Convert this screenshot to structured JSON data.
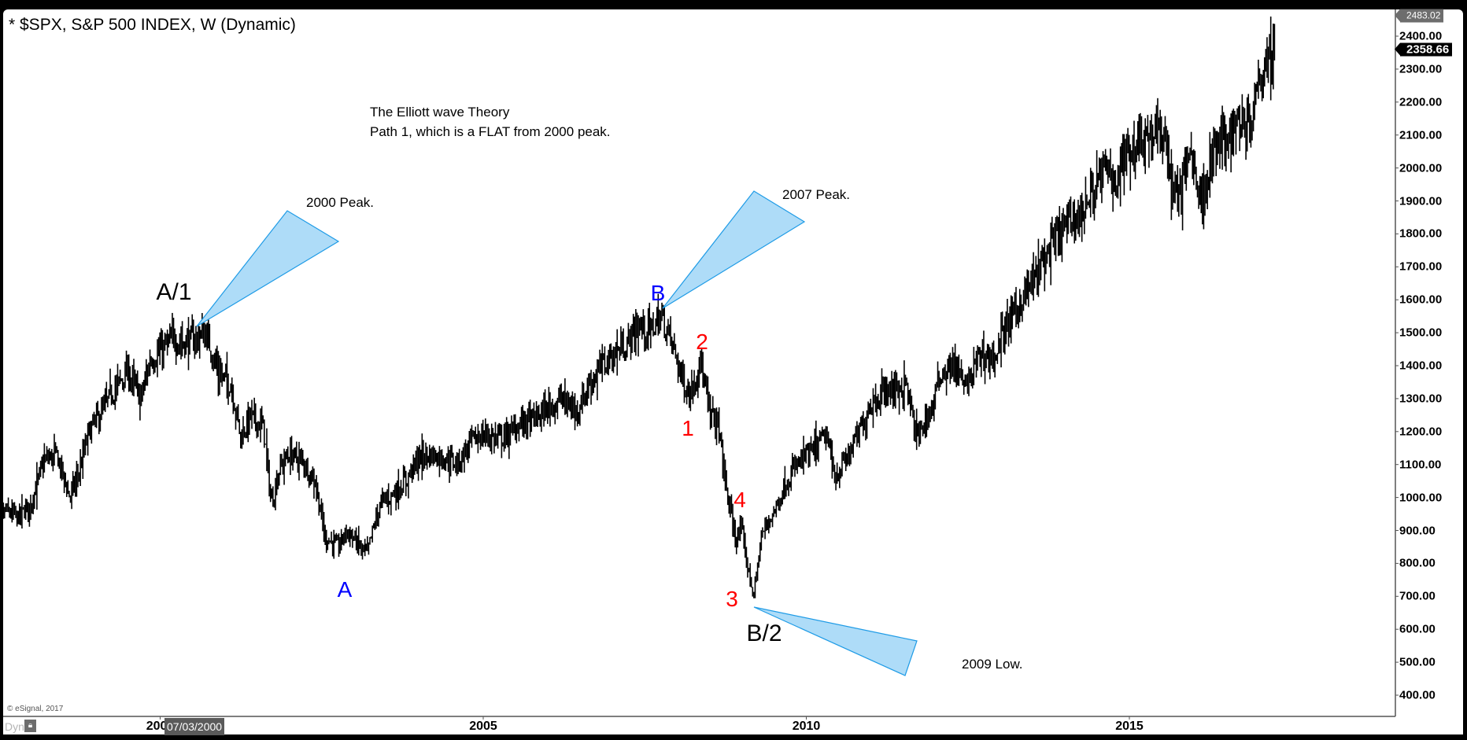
{
  "window": {
    "title": "* $SPX, S&P 500 INDEX, W (Dynamic)",
    "copyright": "© eSignal, 2017",
    "dyn_label": "Dyn",
    "lock_icon": "padlock-icon",
    "cursor_date": "07/03/2000"
  },
  "annotations": {
    "heading_line1": "The Elliott wave Theory",
    "heading_line2": "Path 1, which is a FLAT from 2000 peak.",
    "peak_2000": "2000 Peak.",
    "peak_2007": "2007 Peak.",
    "low_2009": "2009 Low.",
    "wave_A1": "A/1",
    "wave_A": "A",
    "wave_B": "B",
    "wave_B2": "B/2",
    "wave_1": "1",
    "wave_2": "2",
    "wave_3": "3",
    "wave_4": "4",
    "callout_fill": "#aedcf8",
    "callout_stroke": "#1e9be6",
    "blue_label_color": "#0000ff",
    "red_label_color": "#ff0000"
  },
  "price_axis": {
    "top_value": "2483.02",
    "last_value": "2358.66",
    "ticks": [
      "2400.00",
      "2300.00",
      "2200.00",
      "2100.00",
      "2000.00",
      "1900.00",
      "1800.00",
      "1700.00",
      "1600.00",
      "1500.00",
      "1400.00",
      "1300.00",
      "1200.00",
      "1100.00",
      "1000.00",
      "900.00",
      "800.00",
      "700.00",
      "600.00",
      "500.00",
      "400.00"
    ]
  },
  "time_axis": {
    "ticks": [
      "2000",
      "2005",
      "2010",
      "2015"
    ]
  },
  "chart_data": {
    "type": "bar",
    "title": "* $SPX, S&P 500 INDEX, W (Dynamic)",
    "subtitle": "The Elliott wave Theory — Path 1, which is a FLAT from 2000 peak.",
    "xlabel": "",
    "ylabel": "",
    "x_ticks": [
      2000,
      2005,
      2010,
      2015
    ],
    "ylim": [
      400,
      2483.02
    ],
    "y_ticks": [
      400,
      500,
      600,
      700,
      800,
      900,
      1000,
      1100,
      1200,
      1300,
      1400,
      1500,
      1600,
      1700,
      1800,
      1900,
      2000,
      2100,
      2200,
      2300,
      2400
    ],
    "grid": false,
    "last_price": 2358.66,
    "series": [
      {
        "name": "$SPX weekly (approx. close path)",
        "x": [
          1997.4,
          1997.6,
          1997.8,
          1998.0,
          1998.2,
          1998.4,
          1998.6,
          1998.75,
          1998.9,
          1999.1,
          1999.3,
          1999.5,
          1999.7,
          1999.85,
          2000.0,
          2000.2,
          2000.45,
          2000.7,
          2000.9,
          2001.1,
          2001.25,
          2001.4,
          2001.6,
          2001.72,
          2001.85,
          2002.0,
          2002.2,
          2002.4,
          2002.55,
          2002.75,
          2002.9,
          2003.05,
          2003.2,
          2003.4,
          2003.6,
          2003.8,
          2004.0,
          2004.2,
          2004.4,
          2004.6,
          2004.8,
          2005.0,
          2005.2,
          2005.4,
          2005.6,
          2005.8,
          2006.0,
          2006.2,
          2006.45,
          2006.6,
          2006.8,
          2007.0,
          2007.2,
          2007.4,
          2007.55,
          2007.75,
          2007.9,
          2008.1,
          2008.2,
          2008.35,
          2008.5,
          2008.65,
          2008.78,
          2008.9,
          2009.0,
          2009.1,
          2009.19,
          2009.3,
          2009.5,
          2009.7,
          2009.9,
          2010.1,
          2010.3,
          2010.45,
          2010.6,
          2010.8,
          2011.0,
          2011.3,
          2011.55,
          2011.7,
          2011.9,
          2012.1,
          2012.3,
          2012.45,
          2012.7,
          2012.9,
          2013.1,
          2013.4,
          2013.6,
          2013.9,
          2014.1,
          2014.3,
          2014.6,
          2014.8,
          2015.0,
          2015.2,
          2015.4,
          2015.6,
          2015.65,
          2015.8,
          2015.95,
          2016.1,
          2016.3,
          2016.5,
          2016.7,
          2016.85,
          2017.0,
          2017.15,
          2017.25
        ],
        "close": [
          900,
          960,
          940,
          980,
          1110,
          1130,
          1000,
          1080,
          1200,
          1260,
          1330,
          1380,
          1300,
          1420,
          1440,
          1480,
          1470,
          1500,
          1380,
          1340,
          1180,
          1250,
          1210,
          980,
          1090,
          1130,
          1110,
          1050,
          880,
          850,
          900,
          860,
          830,
          980,
          1010,
          1050,
          1120,
          1130,
          1120,
          1100,
          1170,
          1190,
          1180,
          1190,
          1230,
          1240,
          1270,
          1300,
          1260,
          1330,
          1390,
          1430,
          1460,
          1520,
          1500,
          1550,
          1480,
          1350,
          1310,
          1420,
          1260,
          1210,
          1000,
          880,
          900,
          780,
          700,
          880,
          960,
          1050,
          1110,
          1140,
          1190,
          1060,
          1110,
          1190,
          1290,
          1330,
          1340,
          1180,
          1250,
          1380,
          1400,
          1330,
          1440,
          1420,
          1520,
          1620,
          1690,
          1800,
          1840,
          1880,
          1990,
          1970,
          2060,
          2100,
          2100,
          2080,
          1920,
          1930,
          2060,
          1900,
          2050,
          2100,
          2150,
          2140,
          2270,
          2360,
          2358.66
        ],
        "notable_points": [
          {
            "label": "A/1 (2000 Peak)",
            "x": 2000.6,
            "y": 1552
          },
          {
            "label": "A",
            "x": 2002.8,
            "y": 776
          },
          {
            "label": "B (2007 Peak)",
            "x": 2007.8,
            "y": 1576
          },
          {
            "label": "1",
            "x": 2008.2,
            "y": 1256
          },
          {
            "label": "2",
            "x": 2008.4,
            "y": 1440
          },
          {
            "label": "3",
            "x": 2008.9,
            "y": 741
          },
          {
            "label": "4",
            "x": 2009.0,
            "y": 1000
          },
          {
            "label": "B/2 (2009 Low)",
            "x": 2009.19,
            "y": 667
          }
        ]
      }
    ]
  }
}
